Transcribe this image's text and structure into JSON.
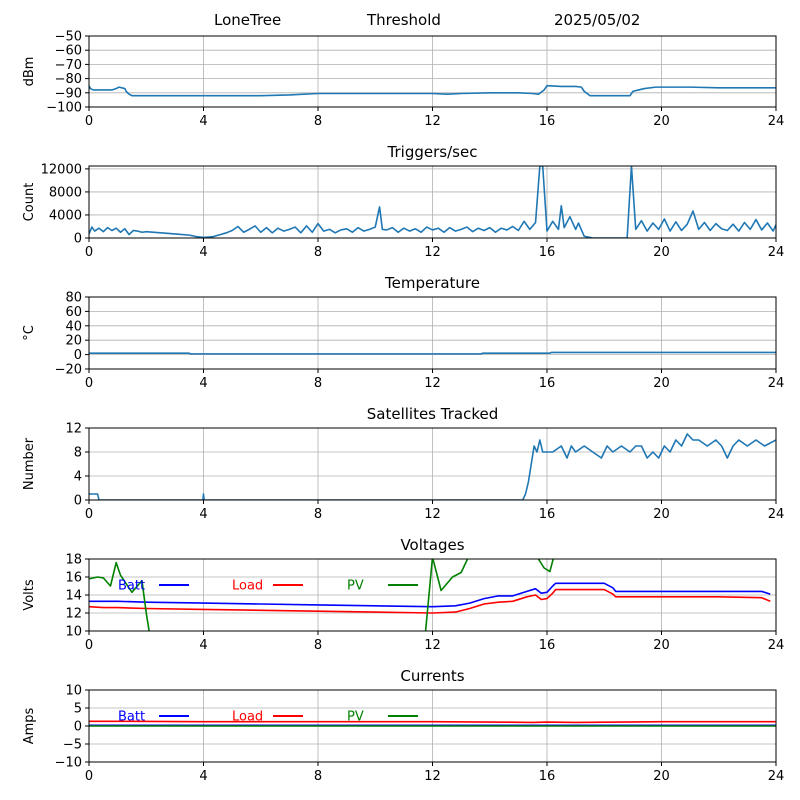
{
  "header": {
    "station": "LoneTree",
    "mode": "Threshold",
    "date": "2025/05/02"
  },
  "x_tick_labels": [
    "0",
    "4",
    "8",
    "12",
    "16",
    "20",
    "24"
  ],
  "colors": {
    "series_default": "#1f77b4",
    "batt": "#0000ff",
    "load": "#ff0000",
    "pv": "#008000",
    "grid": "#b0b0b0"
  },
  "chart_data": [
    {
      "id": "rssi",
      "type": "line",
      "title": "",
      "xlabel": "",
      "ylabel": "dBm",
      "xlim": [
        0,
        24
      ],
      "ylim": [
        -100,
        -50
      ],
      "y_ticks": [
        -100,
        -90,
        -80,
        -70,
        -60,
        -50
      ],
      "grid": true,
      "series": [
        {
          "color": "#1f77b4",
          "x": [
            0,
            0.05,
            0.15,
            0.3,
            0.5,
            0.8,
            0.95,
            1.05,
            1.25,
            1.3,
            1.4,
            1.5,
            2.0,
            4.0,
            5.0,
            6.0,
            7.0,
            8.0,
            9.0,
            10.0,
            11.0,
            12.0,
            12.5,
            13.0,
            14.0,
            15.0,
            15.5,
            15.7,
            15.9,
            16.0,
            16.5,
            17.0,
            17.2,
            17.3,
            17.5,
            18.0,
            18.5,
            18.9,
            19.0,
            19.2,
            19.4,
            19.8,
            20.0,
            21.0,
            22.0,
            23.0,
            24.0
          ],
          "y": [
            -85,
            -87,
            -88,
            -88,
            -88,
            -88,
            -87,
            -86,
            -87,
            -89,
            -91,
            -92,
            -92,
            -92,
            -92,
            -92,
            -91.5,
            -90.5,
            -90.5,
            -90.5,
            -90.5,
            -90.5,
            -91,
            -90.5,
            -90,
            -90,
            -90.5,
            -91,
            -88,
            -85,
            -85.5,
            -85.5,
            -86,
            -89,
            -92,
            -92,
            -92,
            -92,
            -89,
            -88,
            -87,
            -86,
            -86,
            -86,
            -86.5,
            -86.5,
            -86.5
          ]
        }
      ]
    },
    {
      "id": "triggers",
      "type": "line",
      "title": "Triggers/sec",
      "xlabel": "",
      "ylabel": "Count",
      "xlim": [
        0,
        24
      ],
      "ylim": [
        0,
        12500
      ],
      "y_ticks": [
        0,
        4000,
        8000,
        12000
      ],
      "grid": true,
      "series": [
        {
          "color": "#1f77b4",
          "x": [
            0,
            0.1,
            0.2,
            0.35,
            0.5,
            0.65,
            0.8,
            0.95,
            1.1,
            1.25,
            1.4,
            1.55,
            1.7,
            1.85,
            2.0,
            2.5,
            3.0,
            3.5,
            3.8,
            4.0,
            4.3,
            4.6,
            4.8,
            5.0,
            5.2,
            5.4,
            5.6,
            5.8,
            6.0,
            6.2,
            6.4,
            6.6,
            6.8,
            7.0,
            7.2,
            7.4,
            7.6,
            7.8,
            8.0,
            8.2,
            8.4,
            8.6,
            8.8,
            9.0,
            9.2,
            9.4,
            9.6,
            9.8,
            10.0,
            10.15,
            10.25,
            10.4,
            10.6,
            10.8,
            11.0,
            11.2,
            11.4,
            11.6,
            11.8,
            12.0,
            12.2,
            12.4,
            12.6,
            12.8,
            13.0,
            13.2,
            13.4,
            13.6,
            13.8,
            14.0,
            14.2,
            14.4,
            14.6,
            14.8,
            15.0,
            15.2,
            15.4,
            15.6,
            15.75,
            15.85,
            16.0,
            16.2,
            16.4,
            16.5,
            16.6,
            16.8,
            17.0,
            17.1,
            17.3,
            17.6,
            18.0,
            18.4,
            18.7,
            18.8,
            18.95,
            19.1,
            19.3,
            19.5,
            19.7,
            19.9,
            20.1,
            20.3,
            20.5,
            20.7,
            20.9,
            21.1,
            21.3,
            21.5,
            21.7,
            21.9,
            22.1,
            22.3,
            22.5,
            22.7,
            22.9,
            23.1,
            23.3,
            23.5,
            23.7,
            23.9,
            24.0
          ],
          "y": [
            700,
            1900,
            1200,
            1700,
            1100,
            1800,
            1300,
            1700,
            1000,
            1600,
            600,
            1300,
            1200,
            1000,
            1100,
            900,
            700,
            500,
            200,
            100,
            200,
            600,
            900,
            1300,
            2000,
            1000,
            1500,
            2100,
            1000,
            1800,
            900,
            1700,
            1200,
            1500,
            1900,
            900,
            2100,
            1000,
            2500,
            1200,
            1500,
            900,
            1400,
            1600,
            1000,
            1800,
            1200,
            1500,
            1900,
            5400,
            1500,
            1400,
            1800,
            1000,
            1700,
            1200,
            1600,
            1000,
            1900,
            1400,
            1700,
            1000,
            1800,
            1200,
            1500,
            1900,
            1100,
            1700,
            1300,
            1800,
            1000,
            1700,
            1400,
            2000,
            1300,
            2900,
            1500,
            2700,
            12500,
            12500,
            1200,
            2900,
            1500,
            5600,
            1800,
            3700,
            1500,
            2600,
            300,
            0,
            0,
            0,
            0,
            0,
            12500,
            1500,
            3000,
            1200,
            2600,
            1500,
            3300,
            1200,
            2800,
            1300,
            2400,
            4700,
            1500,
            2700,
            1300,
            2500,
            1600,
            1300,
            2400,
            1200,
            2700,
            1500,
            3200,
            1400,
            2600,
            1200,
            2300
          ]
        }
      ]
    },
    {
      "id": "temperature",
      "type": "line",
      "title": "Temperature",
      "xlabel": "",
      "ylabel": "°C",
      "xlim": [
        0,
        24
      ],
      "ylim": [
        -20,
        80
      ],
      "y_ticks": [
        -20,
        0,
        20,
        40,
        60,
        80
      ],
      "grid": true,
      "series": [
        {
          "color": "#1f77b4",
          "x": [
            0,
            3.5,
            3.55,
            13.7,
            13.75,
            16.1,
            16.15,
            24.0
          ],
          "y": [
            2,
            2,
            1,
            1,
            2,
            2,
            3,
            3
          ]
        }
      ]
    },
    {
      "id": "satellites",
      "type": "line",
      "title": "Satellites Tracked",
      "xlabel": "",
      "ylabel": "Number",
      "xlim": [
        0,
        24
      ],
      "ylim": [
        0,
        12
      ],
      "y_ticks": [
        0,
        4,
        8,
        12
      ],
      "grid": true,
      "series": [
        {
          "color": "#1f77b4",
          "x": [
            0,
            0.3,
            0.35,
            3.98,
            4.0,
            4.02,
            15.0,
            15.15,
            15.25,
            15.35,
            15.45,
            15.55,
            15.65,
            15.75,
            15.85,
            16.0,
            16.2,
            16.5,
            16.7,
            16.85,
            17.0,
            17.3,
            17.6,
            17.9,
            18.1,
            18.3,
            18.6,
            18.9,
            19.1,
            19.3,
            19.5,
            19.7,
            19.9,
            20.1,
            20.3,
            20.5,
            20.7,
            20.9,
            21.1,
            21.3,
            21.6,
            21.9,
            22.1,
            22.3,
            22.5,
            22.7,
            23.0,
            23.3,
            23.6,
            24.0
          ],
          "y": [
            1,
            1,
            0,
            0,
            1,
            0,
            0,
            0,
            1,
            3,
            6,
            9,
            8,
            10,
            8,
            8,
            8,
            9,
            7,
            9,
            8,
            9,
            8,
            7,
            9,
            8,
            9,
            8,
            9,
            9,
            7,
            8,
            7,
            9,
            8,
            10,
            9,
            11,
            10,
            10,
            9,
            10,
            9,
            7,
            9,
            10,
            9,
            10,
            9,
            10
          ]
        }
      ]
    },
    {
      "id": "voltages",
      "type": "line",
      "title": "Voltages",
      "xlabel": "",
      "ylabel": "Volts",
      "xlim": [
        0,
        24
      ],
      "ylim": [
        10,
        18
      ],
      "y_ticks": [
        10,
        12,
        14,
        16,
        18
      ],
      "grid": true,
      "legend": {
        "placement": "top-left",
        "entries": [
          "Batt",
          "Load",
          "PV"
        ]
      },
      "series": [
        {
          "name": "Batt",
          "color": "#0000ff",
          "x": [
            0,
            1,
            2,
            4,
            6,
            8,
            10,
            12,
            12.8,
            13.3,
            13.8,
            14.3,
            14.8,
            15.3,
            15.6,
            15.8,
            16.0,
            16.2,
            16.3,
            18.0,
            18.3,
            18.4,
            20,
            22,
            23.5,
            23.8
          ],
          "y": [
            13.3,
            13.3,
            13.2,
            13.1,
            13.0,
            12.9,
            12.8,
            12.7,
            12.8,
            13.1,
            13.6,
            13.9,
            13.9,
            14.4,
            14.7,
            14.2,
            14.3,
            15.0,
            15.3,
            15.3,
            14.8,
            14.4,
            14.4,
            14.4,
            14.4,
            14.1
          ]
        },
        {
          "name": "Load",
          "color": "#ff0000",
          "x": [
            0,
            0.5,
            1,
            2,
            4,
            6,
            8,
            10,
            12,
            12.8,
            13.3,
            13.8,
            14.3,
            14.8,
            15.3,
            15.6,
            15.8,
            16.0,
            16.2,
            16.3,
            18.0,
            18.3,
            18.4,
            20,
            22,
            23.5,
            23.8
          ],
          "y": [
            12.7,
            12.6,
            12.6,
            12.5,
            12.4,
            12.3,
            12.2,
            12.1,
            12.0,
            12.1,
            12.5,
            13.0,
            13.2,
            13.3,
            13.8,
            14.0,
            13.5,
            13.6,
            14.2,
            14.6,
            14.6,
            14.1,
            13.8,
            13.8,
            13.8,
            13.7,
            13.3
          ]
        },
        {
          "name": "PV",
          "color": "#008000",
          "x": [
            0,
            0.3,
            0.5,
            0.75,
            0.95,
            1.1,
            1.5,
            1.85,
            2.0,
            2.2,
            11.7,
            12.0,
            12.3,
            12.7,
            13.0,
            13.3,
            15.6,
            15.9,
            16.1,
            16.3
          ],
          "y": [
            15.8,
            16.0,
            15.9,
            15.0,
            17.6,
            16.2,
            14.3,
            15.6,
            12.0,
            8.0,
            8.0,
            18.2,
            14.5,
            16.0,
            16.5,
            18.5,
            18.5,
            17.0,
            16.6,
            19.0
          ]
        }
      ]
    },
    {
      "id": "currents",
      "type": "line",
      "title": "Currents",
      "xlabel": "",
      "ylabel": "Amps",
      "xlim": [
        0,
        24
      ],
      "ylim": [
        -10,
        10
      ],
      "y_ticks": [
        -10,
        -5,
        0,
        5,
        10
      ],
      "grid": true,
      "legend": {
        "placement": "top-left",
        "entries": [
          "Batt",
          "Load",
          "PV"
        ]
      },
      "series": [
        {
          "name": "Batt",
          "color": "#0000ff",
          "x": [
            0,
            24
          ],
          "y": [
            0.2,
            0.2
          ]
        },
        {
          "name": "Load",
          "color": "#ff0000",
          "x": [
            0,
            1,
            4,
            8,
            12,
            15.5,
            16.0,
            17,
            18.5,
            20,
            24
          ],
          "y": [
            1.3,
            1.3,
            1.2,
            1.2,
            1.2,
            1.0,
            1.1,
            1.0,
            1.1,
            1.2,
            1.2
          ]
        },
        {
          "name": "PV",
          "color": "#008000",
          "x": [
            0,
            24
          ],
          "y": [
            0,
            0
          ]
        }
      ]
    }
  ]
}
